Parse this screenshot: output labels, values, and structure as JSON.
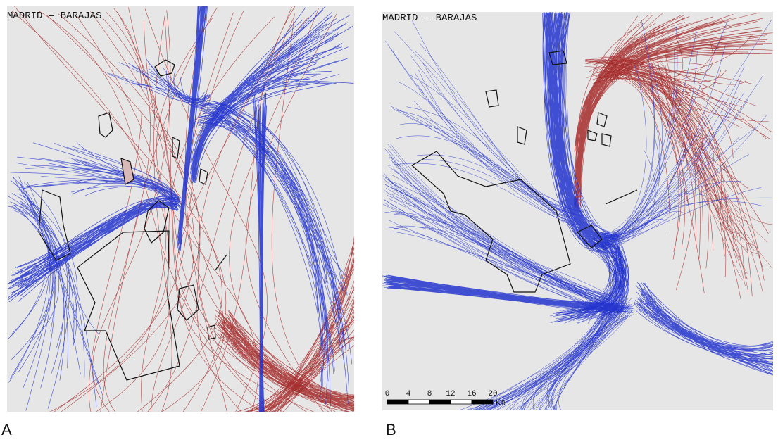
{
  "panels": [
    {
      "title": "MADRID – BARAJAS",
      "label": "A"
    },
    {
      "title": "MADRID – BARAJAS",
      "label": "B",
      "scale": {
        "ticks": [
          0,
          4,
          8,
          12,
          16,
          20
        ],
        "unit": "Km"
      }
    }
  ]
}
